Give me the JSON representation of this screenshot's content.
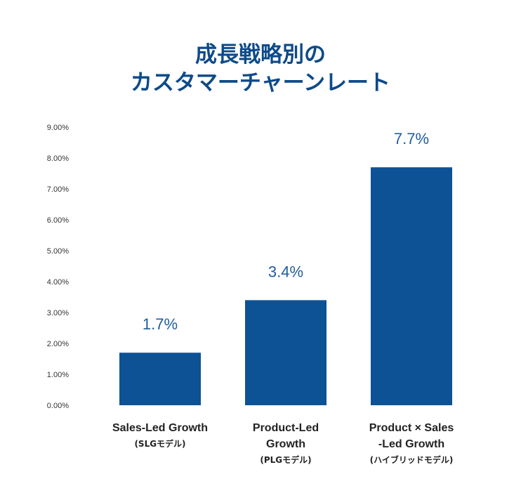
{
  "title": [
    "成長戦略別の",
    "カスタマーチャーンレート"
  ],
  "chart_data": {
    "type": "bar",
    "title": "成長戦略別の カスタマーチャーンレート",
    "categories": [
      "Sales-Led Growth (SLGモデル)",
      "Product-Led Growth (PLGモデル)",
      "Product × Sales -Led Growth (ハイブリッドモデル)"
    ],
    "category_lines": [
      {
        "lines": [
          "Sales-Led Growth"
        ],
        "sub": "(SLGモデル)"
      },
      {
        "lines": [
          "Product-Led",
          "Growth"
        ],
        "sub": "(PLGモデル)"
      },
      {
        "lines": [
          "Product × Sales",
          "-Led Growth"
        ],
        "sub": "(ハイブリッドモデル)"
      }
    ],
    "values": [
      1.7,
      3.4,
      7.7
    ],
    "data_labels": [
      "1.7%",
      "3.4%",
      "7.7%"
    ],
    "y_ticks": [
      "0.00%",
      "1.00%",
      "2.00%",
      "3.00%",
      "4.00%",
      "5.00%",
      "6.00%",
      "7.00%",
      "8.00%",
      "9.00%"
    ],
    "ylim": [
      0,
      9
    ],
    "xlabel": "",
    "ylabel": "",
    "grid": false,
    "legend": "none",
    "bar_color": "#0d5294",
    "label_color": "#1f5d9c",
    "title_color": "#0d4a88"
  }
}
